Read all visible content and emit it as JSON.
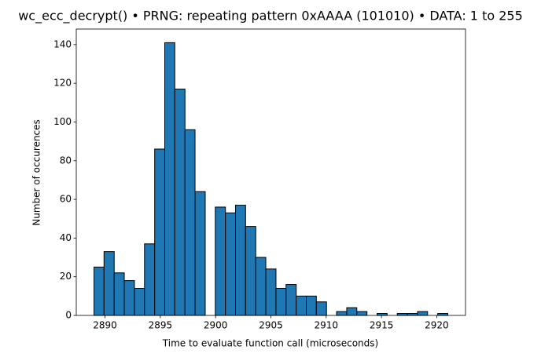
{
  "chart_data": {
    "type": "histogram",
    "title": "wc_ecc_decrypt() • PRNG: repeating pattern 0xAAAA (101010) • DATA: 1 to 255",
    "xlabel": "Time to evaluate function call (microseconds)",
    "ylabel": "Number of occurences",
    "bins": [
      2889,
      2889.91,
      2890.83,
      2891.74,
      2892.66,
      2893.57,
      2894.49,
      2895.4,
      2896.31,
      2897.23,
      2898.14,
      2899.06,
      2899.97,
      2900.89,
      2901.8,
      2902.71,
      2903.63,
      2904.54,
      2905.46,
      2906.37,
      2907.29,
      2908.2,
      2909.11,
      2910.03,
      2910.94,
      2911.86,
      2912.77,
      2913.69,
      2914.6,
      2915.51,
      2916.43,
      2917.34,
      2918.26,
      2919.17,
      2920.09,
      2921
    ],
    "values": [
      25,
      33,
      22,
      18,
      14,
      37,
      86,
      141,
      117,
      96,
      64,
      0,
      56,
      53,
      57,
      46,
      30,
      24,
      14,
      16,
      10,
      10,
      7,
      0,
      2,
      4,
      2,
      0,
      1,
      0,
      1,
      1,
      2,
      0,
      1
    ],
    "color": "#1f77b4",
    "edgecolor": "#000000",
    "xlim": [
      2887.4,
      2922.6
    ],
    "xticks": [
      2890,
      2895,
      2900,
      2905,
      2910,
      2915,
      2920
    ],
    "ylim": [
      0,
      148.05
    ],
    "yticks": [
      0,
      20,
      40,
      60,
      80,
      100,
      120,
      140
    ]
  }
}
